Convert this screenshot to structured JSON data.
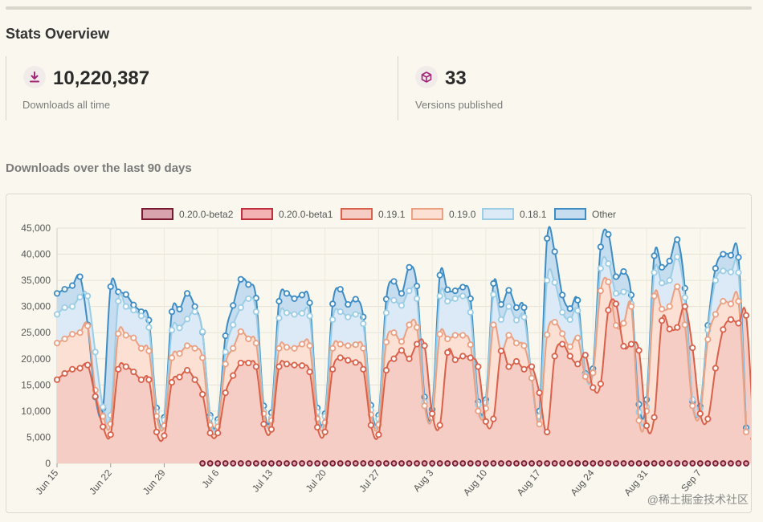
{
  "page": {
    "title": "Stats Overview",
    "subtitle": "Downloads over the last 90 days",
    "watermark": "@稀土掘金技术社区"
  },
  "stats": [
    {
      "icon": "download-icon",
      "value": "10,220,387",
      "label": "Downloads all time"
    },
    {
      "icon": "package-icon",
      "value": "33",
      "label": "Versions published"
    }
  ],
  "colors": {
    "accent": "#a3287a"
  },
  "chart_data": {
    "type": "area",
    "stacked": true,
    "ylim": [
      0,
      45000
    ],
    "yticks": [
      0,
      5000,
      10000,
      15000,
      20000,
      25000,
      30000,
      35000,
      40000,
      45000
    ],
    "ytick_labels": [
      "0",
      "5,000",
      "10,000",
      "15,000",
      "20,000",
      "25,000",
      "30,000",
      "35,000",
      "40,000",
      "45,000"
    ],
    "xtick_labels": [
      "Jun 15",
      "Jun 22",
      "Jun 29",
      "Jul 6",
      "Jul 13",
      "Jul 20",
      "Jul 27",
      "Aug 3",
      "Aug 10",
      "Aug 17",
      "Aug 24",
      "Aug 31",
      "Sep 7"
    ],
    "xtick_indices": [
      0,
      7,
      14,
      21,
      28,
      35,
      42,
      49,
      56,
      63,
      70,
      77,
      84
    ],
    "legend_position": "top",
    "series": [
      {
        "name": "0.20.0-beta2",
        "fill": "#d9a3ad",
        "stroke": "#7a1a30",
        "start_index": 19,
        "values": [
          0,
          0,
          0,
          0,
          0,
          0,
          0,
          0,
          0,
          0,
          0,
          0,
          0,
          0,
          0,
          0,
          0,
          0,
          0,
          0,
          0,
          0,
          0,
          0,
          0,
          0,
          0,
          0,
          0,
          0,
          0,
          0,
          0,
          0,
          0,
          0,
          0,
          0,
          0,
          0,
          0,
          0,
          0,
          0,
          0,
          0,
          0,
          0,
          0,
          0,
          0,
          0,
          0,
          0,
          0,
          0,
          0,
          0,
          0,
          0,
          0,
          0,
          0,
          0,
          0,
          0,
          0,
          0,
          0,
          0,
          0,
          0,
          0,
          0,
          0
        ]
      },
      {
        "name": "0.20.0-beta1",
        "fill": "#f3b3b5",
        "stroke": "#c0303c",
        "values": []
      },
      {
        "name": "0.19.1",
        "fill": "#f5cdc4",
        "stroke": "#d9604a",
        "values": [
          16000,
          17200,
          18000,
          18200,
          18800,
          12800,
          7000,
          5500,
          18000,
          18500,
          17500,
          16000,
          16000,
          6000,
          5300,
          15500,
          16500,
          17800,
          16000,
          13200,
          5800,
          5800,
          13500,
          16800,
          19200,
          19200,
          18500,
          7500,
          6500,
          18500,
          19000,
          18800,
          18700,
          17500,
          6900,
          6000,
          18000,
          20200,
          19700,
          19300,
          18000,
          7300,
          5500,
          17800,
          20000,
          21600,
          20000,
          22800,
          22500,
          9500,
          7300,
          21200,
          19800,
          20500,
          20200,
          18500,
          8000,
          8500,
          21500,
          18500,
          19500,
          18000,
          18500,
          13500,
          6000,
          20500,
          22800,
          20500,
          19000,
          20700,
          14500,
          15200,
          29300,
          30500,
          22400,
          22800,
          21600,
          7200,
          8800,
          27300,
          25700,
          26000,
          30000,
          22100,
          9500,
          8500,
          18200,
          25600,
          27500,
          26800,
          28300,
          4700
        ]
      },
      {
        "name": "0.19.0",
        "fill": "#fbe0d3",
        "stroke": "#eba082",
        "values": [
          23000,
          23800,
          24700,
          25000,
          26300,
          14000,
          9000,
          7500,
          24800,
          24500,
          24000,
          22000,
          21500,
          9000,
          7200,
          20200,
          21000,
          22500,
          22000,
          20200,
          7300,
          7000,
          19000,
          22000,
          25200,
          23800,
          23000,
          9500,
          8200,
          22000,
          22200,
          22000,
          22800,
          22500,
          8500,
          7800,
          22000,
          22800,
          22500,
          22700,
          22000,
          9300,
          7400,
          23200,
          25000,
          23300,
          26500,
          26000,
          11000,
          8800,
          24700,
          23800,
          24500,
          24500,
          22700,
          10000,
          10500,
          26500,
          21500,
          24500,
          23000,
          22500,
          16300,
          7500,
          24600,
          27000,
          24800,
          22300,
          24000,
          16600,
          17300,
          33000,
          34700,
          26400,
          26800,
          30000,
          8200,
          10000,
          32000,
          29500,
          30000,
          33800,
          26500,
          11000,
          9500,
          23700,
          28500,
          31000,
          30500,
          31000,
          6000
        ]
      },
      {
        "name": "0.18.1",
        "fill": "#dbeaf6",
        "stroke": "#9bcde5",
        "values": [
          28500,
          29800,
          30000,
          31800,
          32000,
          21300,
          10800,
          9200,
          31000,
          30000,
          29300,
          28200,
          26000,
          9800,
          8300,
          25500,
          25900,
          27600,
          29000,
          25200,
          8700,
          7800,
          21300,
          26500,
          29800,
          31500,
          29000,
          10000,
          8700,
          27800,
          28800,
          28500,
          28700,
          28200,
          9800,
          9000,
          27500,
          29000,
          28000,
          28500,
          26700,
          10200,
          8500,
          28800,
          31200,
          30200,
          33000,
          31500,
          11700,
          9500,
          32000,
          31000,
          31500,
          32000,
          28900,
          11200,
          11600,
          32300,
          27500,
          30000,
          27400,
          28000,
          16300,
          9000,
          35000,
          34600,
          28900,
          27500,
          29200,
          17000,
          17500,
          37300,
          38200,
          32500,
          32800,
          30500,
          9800,
          10800,
          36500,
          34500,
          35000,
          39500,
          31700,
          12200,
          10500,
          25500,
          35000,
          36800,
          36600,
          36500,
          6200
        ]
      },
      {
        "name": "Other",
        "fill": "#c6dcef",
        "stroke": "#3e8cc4",
        "values": [
          32500,
          33300,
          34000,
          35700,
          26500,
          12700,
          10500,
          33800,
          32800,
          32300,
          30300,
          29000,
          27400,
          10600,
          8800,
          29000,
          29500,
          32500,
          30000,
          25100,
          9200,
          8400,
          24400,
          30200,
          35200,
          34200,
          31600,
          11000,
          9700,
          31000,
          32500,
          31500,
          32200,
          30700,
          10600,
          9500,
          30500,
          33300,
          30400,
          31400,
          28000,
          11100,
          9200,
          31400,
          34800,
          32500,
          37500,
          33900,
          12700,
          10300,
          36000,
          33200,
          33000,
          33700,
          31500,
          11800,
          12200,
          34400,
          30400,
          33100,
          29800,
          29800,
          16300,
          10000,
          43000,
          40500,
          32200,
          29600,
          31200,
          17200,
          18100,
          41400,
          43800,
          35700,
          36700,
          32200,
          11300,
          12200,
          39700,
          37500,
          38700,
          42800,
          33500,
          11800,
          10900,
          26400,
          37300,
          40000,
          39800,
          39400,
          6800
        ]
      }
    ]
  }
}
